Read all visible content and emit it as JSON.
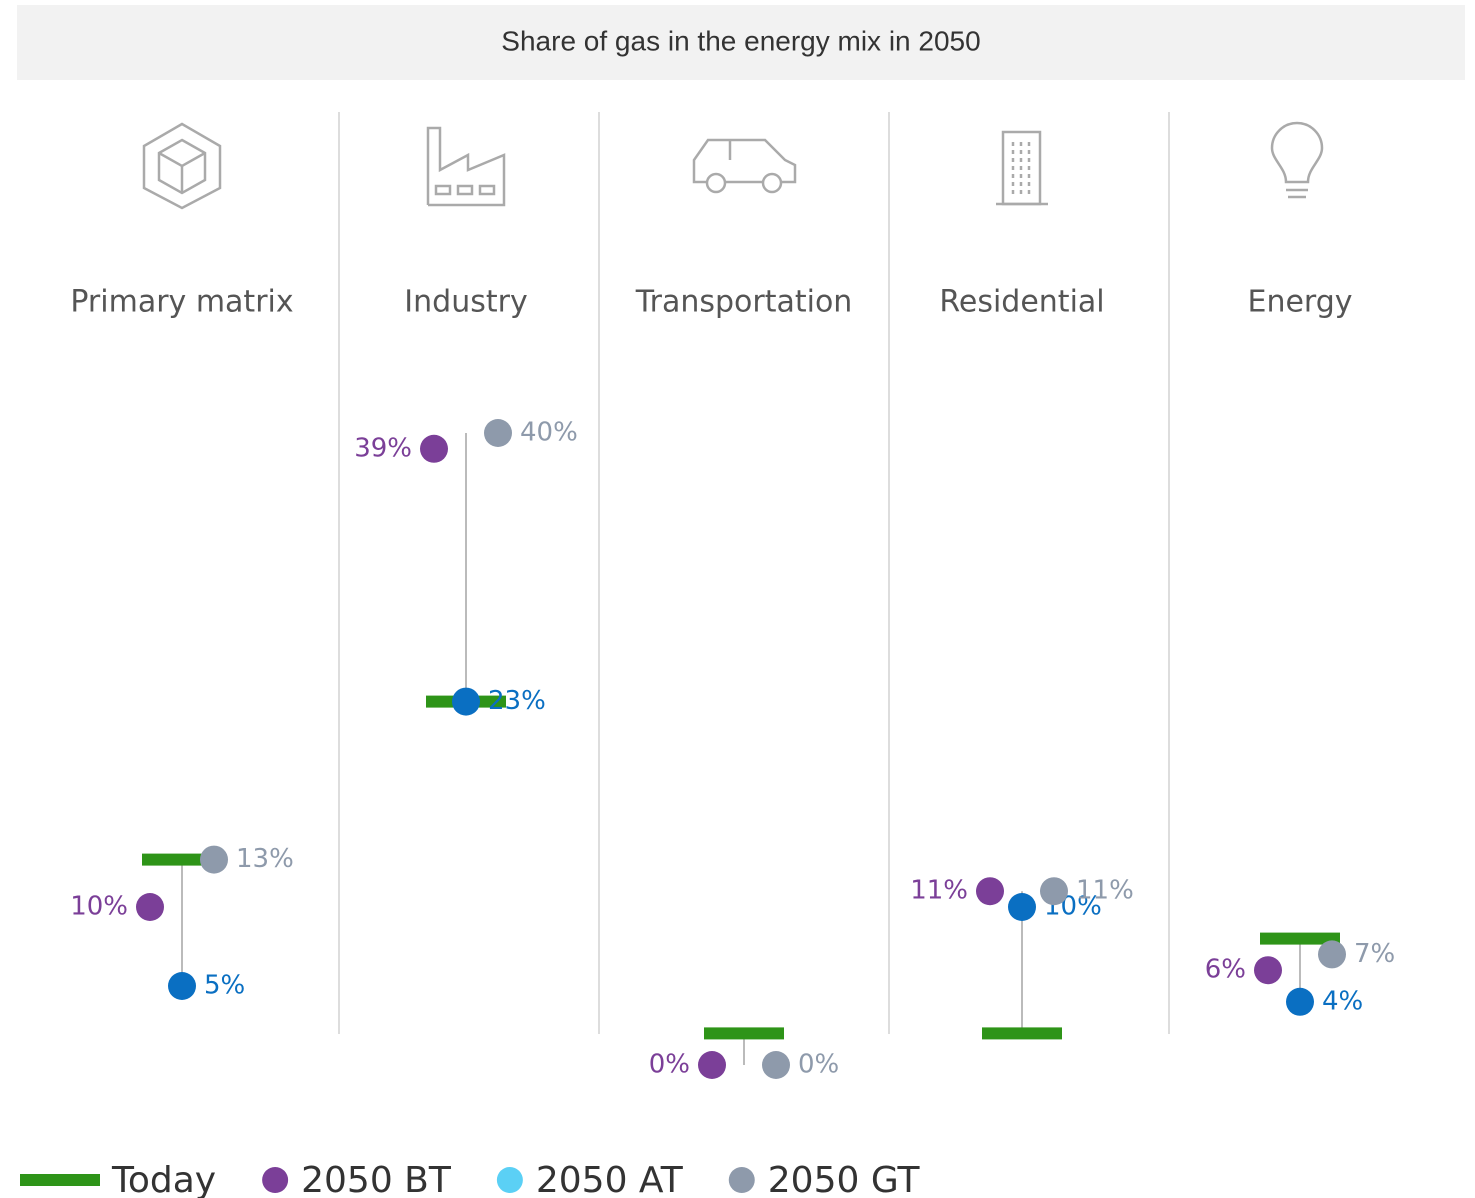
{
  "chart_data": {
    "type": "dot",
    "title": "Share of gas in the energy mix in 2050",
    "categories": [
      "Primary matrix",
      "Industry",
      "Transportation",
      "Residential",
      "Energy"
    ],
    "series": [
      {
        "name": "Today",
        "color": "#2e9418",
        "values": [
          13,
          23,
          2,
          2,
          8
        ]
      },
      {
        "name": "2050 BT",
        "color": "#7b3f98",
        "values": [
          10,
          39,
          0,
          11,
          6
        ],
        "value_labels": [
          "10%",
          "39%",
          "0%",
          "11%",
          "6%"
        ]
      },
      {
        "name": "2050 AT",
        "color": "#0a6fc2",
        "legend_color": "#5bd0f5",
        "values": [
          5,
          23,
          null,
          10,
          4
        ],
        "value_labels": [
          "5%",
          "23%",
          null,
          "10%",
          "4%"
        ]
      },
      {
        "name": "2050 GT",
        "color": "#8e9aab",
        "values": [
          13,
          40,
          0,
          11,
          7
        ],
        "value_labels": [
          "13%",
          "40%",
          "0%",
          "11%",
          "7%"
        ]
      }
    ]
  }
}
